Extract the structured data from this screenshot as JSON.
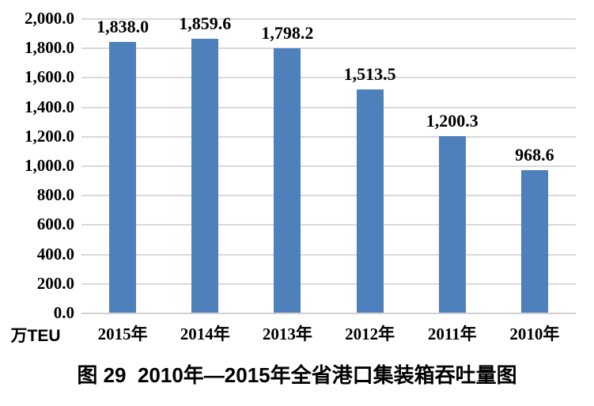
{
  "unit_label": "万TEU",
  "caption": "图 29  2010年—2015年全省港口集装箱吞吐量图",
  "colors": {
    "bar": "#4e80bc",
    "gridline": "#d9d9d9",
    "text": "#000000",
    "background": "#ffffff"
  },
  "chart_data": {
    "type": "bar",
    "title": "图 29  2010年—2015年全省港口集装箱吞吐量图",
    "xlabel": "",
    "ylabel": "万TEU",
    "categories": [
      "2015年",
      "2014年",
      "2013年",
      "2012年",
      "2011年",
      "2010年"
    ],
    "values": [
      1838.0,
      1859.6,
      1798.2,
      1513.5,
      1200.3,
      968.6
    ],
    "data_labels": [
      "1,838.0",
      "1,859.6",
      "1,798.2",
      "1,513.5",
      "1,200.3",
      "968.6"
    ],
    "ylim": [
      0,
      2000
    ],
    "ytick_interval": 200,
    "ytick_labels": [
      "2,000.0",
      "1,800.0",
      "1,600.0",
      "1,400.0",
      "1,200.0",
      "1,000.0",
      "800.0",
      "600.0",
      "400.0",
      "200.0",
      "0.0"
    ],
    "grid": true,
    "legend": false,
    "bar_color": "#4e80bc"
  }
}
